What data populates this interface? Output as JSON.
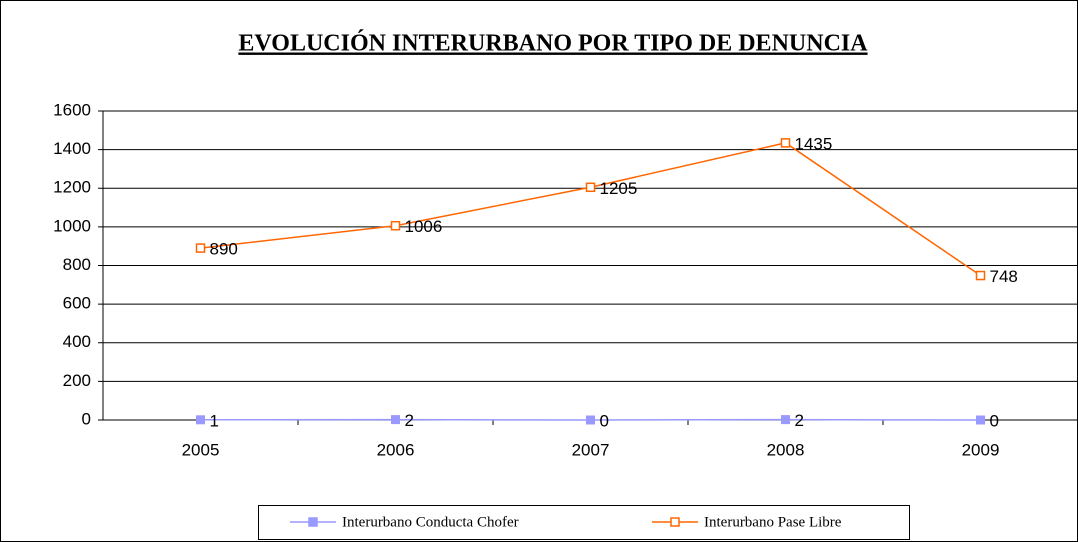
{
  "chart_data": {
    "type": "line",
    "title": "EVOLUCIÓN INTERURBANO POR TIPO DE DENUNCIA",
    "categories": [
      "2005",
      "2006",
      "2007",
      "2008",
      "2009"
    ],
    "series": [
      {
        "name": "Interurbano Conducta Chofer",
        "color": "#9999ff",
        "marker": "filled-square",
        "values": [
          1,
          2,
          0,
          2,
          0
        ]
      },
      {
        "name": "Interurbano Pase Libre",
        "color": "#ff6600",
        "marker": "hollow-square",
        "values": [
          890,
          1006,
          1205,
          1435,
          748
        ]
      }
    ],
    "ylim": [
      0,
      1600
    ],
    "yticks": [
      0,
      200,
      400,
      600,
      800,
      1000,
      1200,
      1400,
      1600
    ],
    "grid": true,
    "legend": "bottom"
  }
}
